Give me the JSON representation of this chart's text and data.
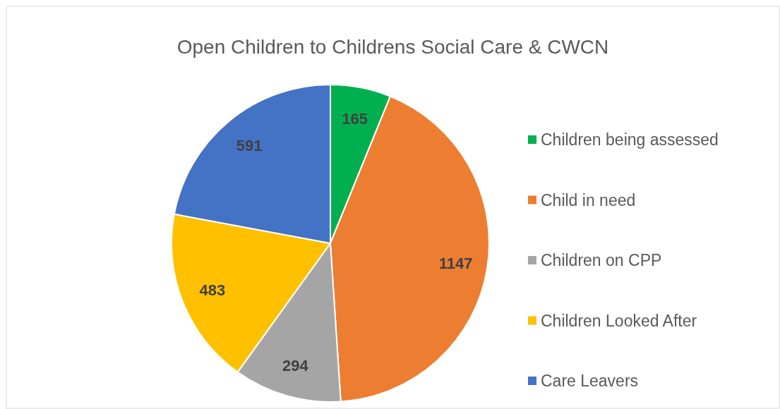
{
  "chart_data": {
    "type": "pie",
    "title": "Open Children to Childrens Social Care & CWCN",
    "categories": [
      "Children being assessed",
      "Child in need",
      "Children on CPP",
      "Children Looked After",
      "Care Leavers"
    ],
    "values": [
      165,
      1147,
      294,
      483,
      591
    ],
    "colors": [
      "#00b050",
      "#ed7d31",
      "#a5a5a5",
      "#ffc000",
      "#4472c4"
    ],
    "data_labels": true,
    "legend": "right"
  }
}
